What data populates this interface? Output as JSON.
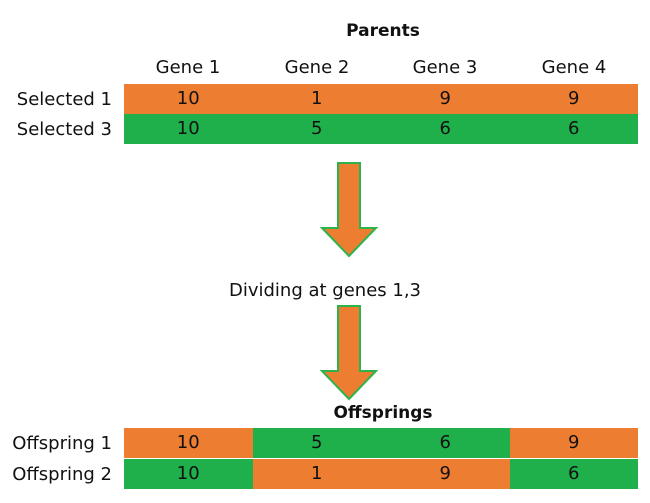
{
  "colors": {
    "orange": "#ED7D31",
    "green": "#1FAF4B",
    "arrow_fill": "#ED7D31",
    "arrow_stroke": "#2EB34B"
  },
  "parents": {
    "title": "Parents",
    "gene_headers": [
      "Gene 1",
      "Gene 2",
      "Gene 3",
      "Gene 4"
    ],
    "rows": [
      {
        "label": "Selected 1",
        "values": [
          "10",
          "1",
          "9",
          "9"
        ],
        "colors": [
          "orange",
          "orange",
          "orange",
          "orange"
        ]
      },
      {
        "label": "Selected 3",
        "values": [
          "10",
          "5",
          "6",
          "6"
        ],
        "colors": [
          "green",
          "green",
          "green",
          "green"
        ]
      }
    ]
  },
  "step_label": "Dividing at genes 1,3",
  "offsprings": {
    "title": "Offsprings",
    "rows": [
      {
        "label": "Offspring 1",
        "values": [
          "10",
          "5",
          "6",
          "9"
        ],
        "colors": [
          "orange",
          "green",
          "green",
          "orange"
        ]
      },
      {
        "label": "Offspring 2",
        "values": [
          "10",
          "1",
          "9",
          "6"
        ],
        "colors": [
          "green",
          "orange",
          "orange",
          "green"
        ]
      }
    ]
  }
}
